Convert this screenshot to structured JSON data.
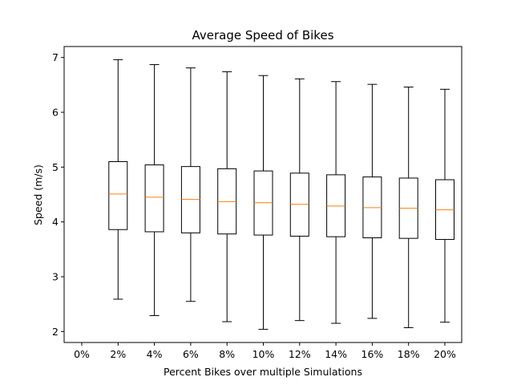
{
  "chart_data": {
    "type": "box",
    "title": "Average Speed of Bikes",
    "xlabel": "Percent Bikes over multiple Simulations",
    "ylabel": "Speed (m/s)",
    "categories": [
      "0%",
      "2%",
      "4%",
      "6%",
      "8%",
      "10%",
      "12%",
      "14%",
      "16%",
      "18%",
      "20%"
    ],
    "yticks": [
      2,
      3,
      4,
      5,
      6,
      7
    ],
    "ylim": [
      1.8,
      7.2
    ],
    "grid": false,
    "colors": {
      "box": "#000000",
      "median": "#ff7f0e"
    },
    "boxes": [
      null,
      {
        "min": 2.59,
        "q1": 3.86,
        "median": 4.51,
        "q3": 5.1,
        "max": 6.96
      },
      {
        "min": 2.29,
        "q1": 3.82,
        "median": 4.45,
        "q3": 5.04,
        "max": 6.87
      },
      {
        "min": 2.55,
        "q1": 3.8,
        "median": 4.41,
        "q3": 5.01,
        "max": 6.81
      },
      {
        "min": 2.18,
        "q1": 3.78,
        "median": 4.37,
        "q3": 4.97,
        "max": 6.74
      },
      {
        "min": 2.04,
        "q1": 3.76,
        "median": 4.35,
        "q3": 4.93,
        "max": 6.67
      },
      {
        "min": 2.2,
        "q1": 3.74,
        "median": 4.32,
        "q3": 4.89,
        "max": 6.61
      },
      {
        "min": 2.15,
        "q1": 3.73,
        "median": 4.29,
        "q3": 4.86,
        "max": 6.56
      },
      {
        "min": 2.24,
        "q1": 3.71,
        "median": 4.26,
        "q3": 4.82,
        "max": 6.51
      },
      {
        "min": 2.07,
        "q1": 3.7,
        "median": 4.25,
        "q3": 4.8,
        "max": 6.46
      },
      {
        "min": 2.17,
        "q1": 3.68,
        "median": 4.22,
        "q3": 4.77,
        "max": 6.42
      }
    ]
  }
}
